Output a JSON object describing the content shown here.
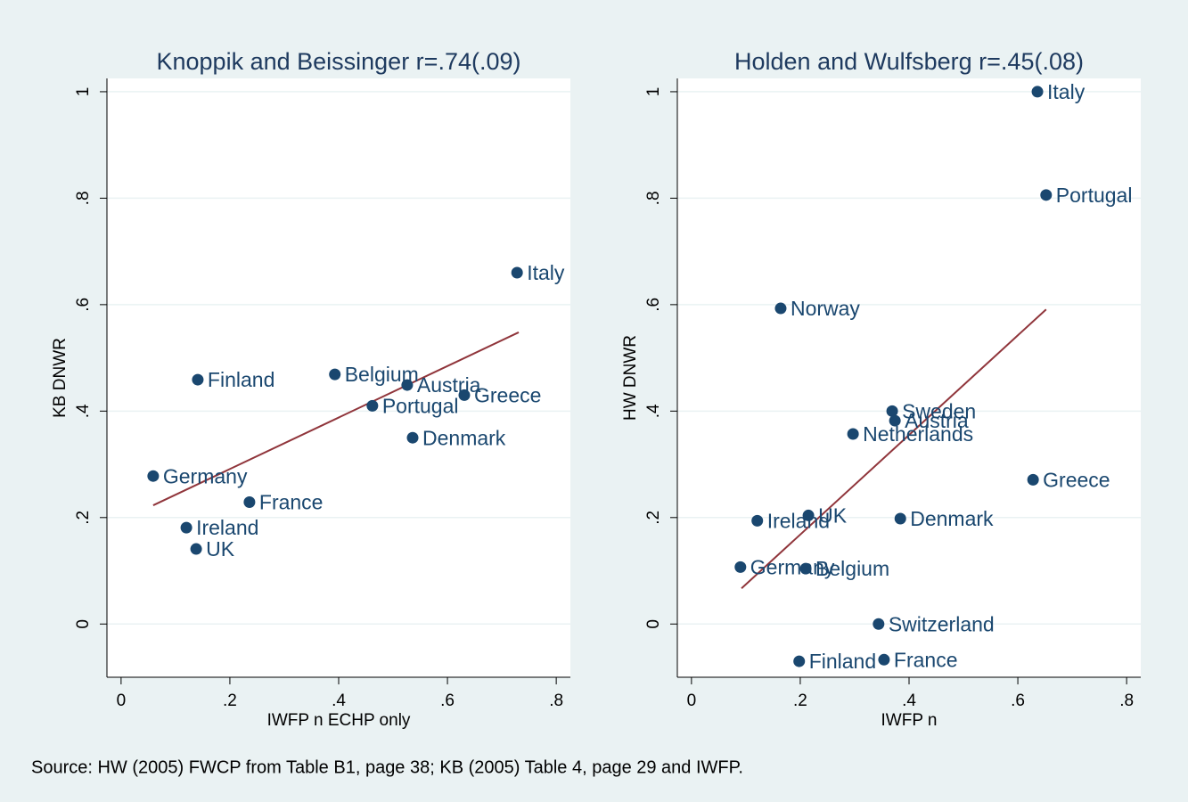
{
  "chart_data": [
    {
      "type": "scatter",
      "title": "Knoppik and Beissinger r=.74(.09)",
      "x_label": "IWFP n ECHP only",
      "y_label": "KB DNWR",
      "xlim": [
        -0.026,
        0.826
      ],
      "ylim": [
        -0.1,
        1.025
      ],
      "xticks": [
        0,
        {
          "value": 0.2,
          "label": ".2"
        },
        {
          "value": 0.4,
          "label": ".4"
        },
        {
          "value": 0.6,
          "label": ".6"
        },
        {
          "value": 0.8,
          "label": ".8"
        }
      ],
      "yticks": [
        0,
        {
          "value": 0.2,
          "label": ".2"
        },
        {
          "value": 0.4,
          "label": ".4"
        },
        {
          "value": 0.6,
          "label": ".6"
        },
        {
          "value": 0.8,
          "label": ".8"
        },
        1
      ],
      "grid": true,
      "points": {
        "color": "#1a476f",
        "labels": [
          "Italy",
          "Finland",
          "Belgium",
          "Austria",
          "Greece",
          "Portugal",
          "Denmark",
          "Germany",
          "France",
          "Ireland",
          "UK"
        ],
        "x": [
          0.728,
          0.141,
          0.393,
          0.526,
          0.631,
          0.462,
          0.536,
          0.059,
          0.236,
          0.12,
          0.138
        ],
        "y": [
          0.66,
          0.459,
          0.469,
          0.449,
          0.43,
          0.41,
          0.35,
          0.278,
          0.229,
          0.181,
          0.141
        ]
      },
      "fit_line": {
        "color": "#90353b",
        "x": [
          0.059,
          0.731
        ],
        "y": [
          0.223,
          0.548
        ]
      }
    },
    {
      "type": "scatter",
      "title": "Holden and Wulfsberg r=.45(.08)",
      "x_label": "IWFP n",
      "y_label": "HW DNWR",
      "xlim": [
        -0.026,
        0.826
      ],
      "ylim": [
        -0.1,
        1.025
      ],
      "xticks": [
        0,
        {
          "value": 0.2,
          "label": ".2"
        },
        {
          "value": 0.4,
          "label": ".4"
        },
        {
          "value": 0.6,
          "label": ".6"
        },
        {
          "value": 0.8,
          "label": ".8"
        }
      ],
      "yticks": [
        0,
        {
          "value": 0.2,
          "label": ".2"
        },
        {
          "value": 0.4,
          "label": ".4"
        },
        {
          "value": 0.6,
          "label": ".6"
        },
        {
          "value": 0.8,
          "label": ".8"
        },
        1
      ],
      "grid": true,
      "points": {
        "color": "#1a476f",
        "labels": [
          "Italy",
          "Portugal",
          "Norway",
          "Sweden",
          "Austria",
          "Netherlands",
          "Greece",
          "UK",
          "Ireland",
          "Denmark",
          "Germany",
          "Belgium",
          "Switzerland",
          "Finland",
          "France"
        ],
        "x": [
          0.636,
          0.652,
          0.164,
          0.369,
          0.374,
          0.297,
          0.628,
          0.215,
          0.121,
          0.384,
          0.09,
          0.21,
          0.344,
          0.198,
          0.354
        ],
        "y": [
          1.0,
          0.806,
          0.593,
          0.4,
          0.382,
          0.357,
          0.271,
          0.204,
          0.194,
          0.198,
          0.107,
          0.104,
          0,
          -0.07,
          -0.067
        ]
      },
      "fit_line": {
        "color": "#90353b",
        "x": [
          0.092,
          0.652
        ],
        "y": [
          0.067,
          0.591
        ]
      }
    }
  ],
  "note": "Source: HW (2005) FWCP from Table B1, page 38; KB (2005) Table 4, page 29 and IWFP."
}
